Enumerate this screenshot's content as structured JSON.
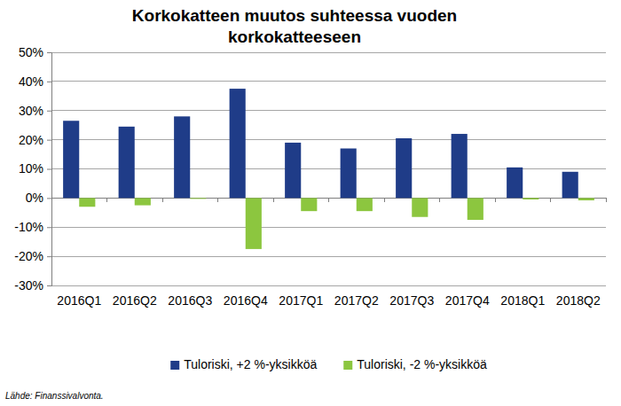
{
  "chart_data": {
    "type": "bar",
    "title": [
      "Korkokatteen muutos suhteessa vuoden",
      "korkokatteeseen"
    ],
    "source": "Lähde: Finanssivalvonta.",
    "categories": [
      "2016Q1",
      "2016Q2",
      "2016Q3",
      "2016Q4",
      "2017Q1",
      "2017Q2",
      "2017Q3",
      "2017Q4",
      "2018Q1",
      "2018Q2"
    ],
    "series": [
      {
        "name": "Tuloriski, +2 %-yksikköä",
        "color": "#1f3c88",
        "values": [
          26.5,
          24.5,
          28,
          37.5,
          19,
          17,
          20.5,
          22,
          10.5,
          9
        ]
      },
      {
        "name": "Tuloriski, -2 %-yksikköä",
        "color": "#8cc63f",
        "values": [
          -3,
          -2.5,
          -0.3,
          -17.5,
          -4.5,
          -4.5,
          -6.5,
          -7.5,
          -0.5,
          -0.8
        ]
      }
    ],
    "ylim": [
      -30,
      50
    ],
    "yticks": [
      {
        "value": -30,
        "label": "-30%"
      },
      {
        "value": -20,
        "label": "-20%"
      },
      {
        "value": -10,
        "label": "-10%"
      },
      {
        "value": 0,
        "label": "0%"
      },
      {
        "value": 10,
        "label": "10%"
      },
      {
        "value": 20,
        "label": "20%"
      },
      {
        "value": 30,
        "label": "30%"
      },
      {
        "value": 40,
        "label": "40%"
      },
      {
        "value": 50,
        "label": "50%"
      }
    ],
    "grid": true,
    "legend": "bottom"
  }
}
